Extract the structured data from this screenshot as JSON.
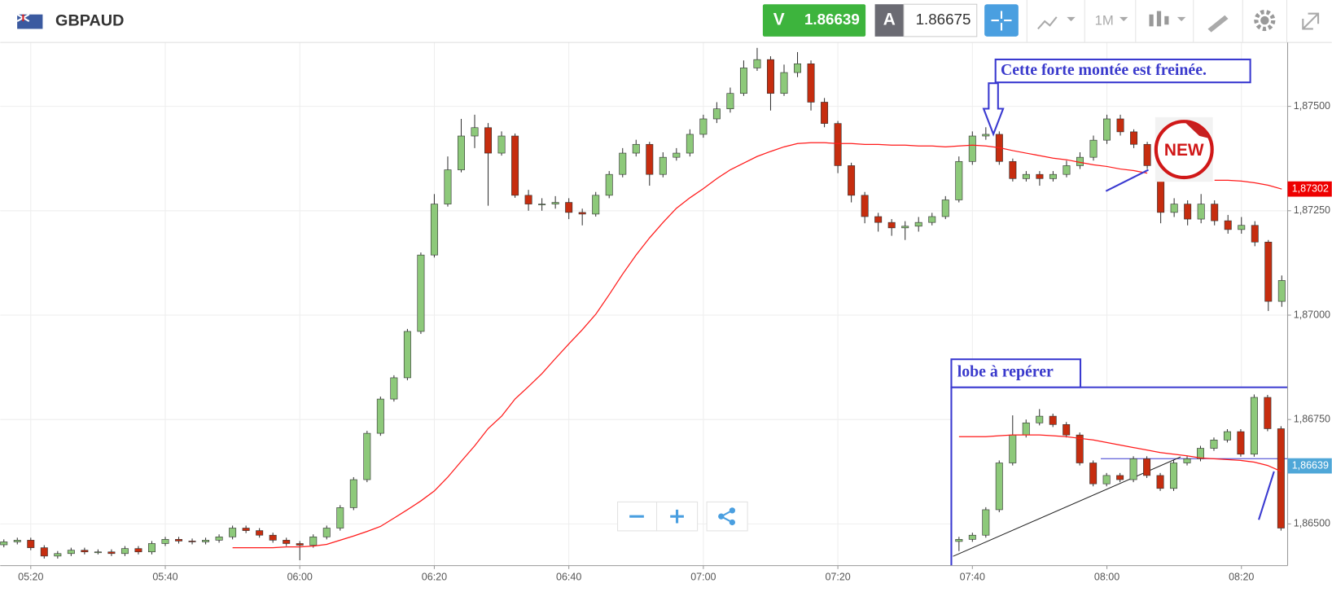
{
  "header": {
    "symbol": "GBPAUD",
    "sell_label": "V",
    "sell_price": 1.86639,
    "buy_label": "A",
    "buy_price": 1.86675,
    "timeframe": "1M"
  },
  "chart_data": [
    {
      "type": "candlestick",
      "categories": [
        null,
        null,
        "05:20",
        null,
        null,
        null,
        null,
        null,
        null,
        null,
        null,
        null,
        "05:40",
        null,
        null,
        null,
        null,
        null,
        null,
        null,
        null,
        null,
        "06:00",
        null,
        null,
        null,
        null,
        null,
        null,
        null,
        null,
        null,
        "06:20",
        null,
        null,
        null,
        null,
        null,
        null,
        null,
        null,
        null,
        "06:40",
        null,
        null,
        null,
        null,
        null,
        null,
        null,
        null,
        null,
        "07:00",
        null,
        null,
        null,
        null,
        null,
        null,
        null,
        null,
        null,
        "07:20",
        null,
        null,
        null,
        null,
        null,
        null,
        null,
        null,
        null,
        "07:40",
        null,
        null,
        null,
        null,
        null,
        null,
        null,
        null,
        null,
        "08:00",
        null,
        null,
        null,
        null,
        null,
        null,
        null,
        null,
        null,
        "08:20",
        null,
        null,
        null
      ],
      "open": [
        1.8645,
        1.86457,
        1.86461,
        1.86443,
        1.86423,
        1.86429,
        1.86437,
        1.86433,
        1.86433,
        1.86429,
        1.86441,
        1.86433,
        1.86453,
        1.86463,
        1.86459,
        1.86457,
        1.86461,
        1.86469,
        1.8649,
        1.86484,
        1.86473,
        1.86461,
        1.86453,
        1.86449,
        1.86469,
        1.8649,
        1.86539,
        1.86606,
        1.86717,
        1.86799,
        1.8685,
        1.86961,
        1.87144,
        1.87266,
        1.87348,
        1.87429,
        1.87449,
        1.87388,
        1.87429,
        1.87287,
        1.87266,
        1.87266,
        1.8727,
        1.87246,
        1.87242,
        1.87287,
        1.87337,
        1.87388,
        1.87409,
        1.87337,
        1.87378,
        1.87388,
        1.87433,
        1.8747,
        1.87494,
        1.87531,
        1.87592,
        1.87612,
        1.87531,
        1.87581,
        1.87602,
        1.8751,
        1.87459,
        1.87358,
        1.87287,
        1.87236,
        1.87222,
        1.87209,
        1.87213,
        1.87222,
        1.87236,
        1.87276,
        1.87368,
        1.87429,
        1.87433,
        1.87368,
        1.87327,
        1.87337,
        1.87327,
        1.87337,
        1.87358,
        1.87378,
        1.87419,
        1.8747,
        1.87439,
        1.87409,
        1.87358,
        1.87246,
        1.87266,
        1.8723,
        1.87266,
        1.87226,
        1.87205,
        1.87215,
        1.87175,
        1.87033
      ],
      "close": [
        1.86457,
        1.86461,
        1.86443,
        1.86423,
        1.86429,
        1.86437,
        1.86433,
        1.86433,
        1.86429,
        1.86441,
        1.86433,
        1.86453,
        1.86463,
        1.86459,
        1.86457,
        1.86461,
        1.86469,
        1.8649,
        1.86484,
        1.86473,
        1.86461,
        1.86453,
        1.86449,
        1.86469,
        1.8649,
        1.86539,
        1.86606,
        1.86717,
        1.86799,
        1.8685,
        1.86961,
        1.87144,
        1.87266,
        1.87348,
        1.87429,
        1.87449,
        1.87388,
        1.87429,
        1.87287,
        1.87266,
        1.87266,
        1.8727,
        1.87246,
        1.87242,
        1.87287,
        1.87337,
        1.87388,
        1.87409,
        1.87337,
        1.87378,
        1.87388,
        1.87433,
        1.8747,
        1.87494,
        1.87531,
        1.87592,
        1.87612,
        1.87531,
        1.87581,
        1.87602,
        1.8751,
        1.87459,
        1.87358,
        1.87287,
        1.87236,
        1.87222,
        1.87209,
        1.87213,
        1.87222,
        1.87236,
        1.87276,
        1.87368,
        1.87429,
        1.87433,
        1.87368,
        1.87327,
        1.87337,
        1.87327,
        1.87337,
        1.87358,
        1.87378,
        1.87419,
        1.8747,
        1.87439,
        1.87409,
        1.87358,
        1.87246,
        1.87266,
        1.8723,
        1.87266,
        1.87226,
        1.87205,
        1.87215,
        1.87175,
        1.87033,
        1.87083
      ],
      "high": [
        1.86463,
        1.86467,
        1.86467,
        1.86449,
        1.86435,
        1.86443,
        1.86443,
        1.86439,
        1.86439,
        1.86447,
        1.86447,
        1.86459,
        1.86469,
        1.86469,
        1.86465,
        1.86467,
        1.86475,
        1.86496,
        1.86496,
        1.8649,
        1.86479,
        1.86467,
        1.86459,
        1.86475,
        1.86496,
        1.86545,
        1.86612,
        1.86723,
        1.86805,
        1.86856,
        1.86967,
        1.8715,
        1.8729,
        1.8738,
        1.8747,
        1.8748,
        1.8746,
        1.8744,
        1.87435,
        1.873,
        1.8728,
        1.87285,
        1.8728,
        1.87255,
        1.87295,
        1.87345,
        1.874,
        1.8742,
        1.87415,
        1.8739,
        1.874,
        1.87445,
        1.8748,
        1.8751,
        1.87545,
        1.8761,
        1.8764,
        1.8762,
        1.876,
        1.8763,
        1.8761,
        1.8752,
        1.87465,
        1.87365,
        1.87295,
        1.87245,
        1.8723,
        1.87225,
        1.87235,
        1.87245,
        1.87285,
        1.8738,
        1.8744,
        1.8745,
        1.8744,
        1.87375,
        1.87345,
        1.87345,
        1.87345,
        1.8737,
        1.8739,
        1.8743,
        1.8748,
        1.8748,
        1.87445,
        1.87415,
        1.87365,
        1.8728,
        1.87275,
        1.8729,
        1.87275,
        1.8724,
        1.87235,
        1.87225,
        1.8718,
        1.87095
      ],
      "low": [
        1.86444,
        1.86451,
        1.86437,
        1.86417,
        1.86417,
        1.86423,
        1.86427,
        1.86427,
        1.86423,
        1.86423,
        1.86427,
        1.86427,
        1.86447,
        1.86453,
        1.86451,
        1.86451,
        1.86455,
        1.86463,
        1.86478,
        1.86467,
        1.86455,
        1.86447,
        1.86413,
        1.86443,
        1.86463,
        1.86484,
        1.86533,
        1.866,
        1.86711,
        1.86793,
        1.86844,
        1.86955,
        1.87138,
        1.8726,
        1.87342,
        1.874,
        1.87262,
        1.87382,
        1.87281,
        1.8725,
        1.8725,
        1.87255,
        1.8723,
        1.87215,
        1.87236,
        1.8728,
        1.8733,
        1.8738,
        1.8731,
        1.8733,
        1.8737,
        1.8738,
        1.87425,
        1.8746,
        1.87485,
        1.87525,
        1.87585,
        1.8749,
        1.87525,
        1.8757,
        1.8749,
        1.8745,
        1.8734,
        1.8727,
        1.8722,
        1.872,
        1.8719,
        1.8718,
        1.872,
        1.87215,
        1.8723,
        1.8727,
        1.8736,
        1.8742,
        1.8736,
        1.8732,
        1.8732,
        1.8731,
        1.8732,
        1.8733,
        1.8735,
        1.8737,
        1.8741,
        1.8743,
        1.874,
        1.8735,
        1.8722,
        1.87235,
        1.87215,
        1.8722,
        1.87215,
        1.87195,
        1.87195,
        1.87165,
        1.8701,
        1.8702
      ],
      "up_color": "#8dc97a",
      "down_color": "#c62d0f",
      "moving_average": {
        "color": "#ff1a1a",
        "values": [
          null,
          null,
          null,
          null,
          null,
          null,
          null,
          null,
          null,
          null,
          null,
          null,
          null,
          null,
          null,
          null,
          null,
          1.86443,
          1.86443,
          1.86443,
          1.86443,
          1.86445,
          1.86445,
          1.86447,
          1.86451,
          1.86461,
          1.86471,
          1.86482,
          1.86494,
          1.86514,
          1.86534,
          1.86555,
          1.86579,
          1.86612,
          1.8665,
          1.86687,
          1.86728,
          1.86758,
          1.86799,
          1.86829,
          1.8686,
          1.86896,
          1.86931,
          1.86965,
          1.87002,
          1.87049,
          1.87098,
          1.87144,
          1.87185,
          1.87222,
          1.87256,
          1.87281,
          1.87303,
          1.87327,
          1.87348,
          1.87364,
          1.8738,
          1.87392,
          1.87403,
          1.87411,
          1.87413,
          1.87413,
          1.87411,
          1.87411,
          1.87409,
          1.87409,
          1.87407,
          1.87407,
          1.87405,
          1.87405,
          1.87403,
          1.87405,
          1.87407,
          1.87405,
          1.87401,
          1.87394,
          1.87388,
          1.87382,
          1.87376,
          1.87372,
          1.87366,
          1.8736,
          1.87356,
          1.8735,
          1.87346,
          1.8734,
          null,
          null,
          null,
          null,
          1.87323,
          1.87323,
          1.87321,
          1.87317,
          1.87311,
          1.87302
        ]
      },
      "last_value_label": {
        "value": 1.87302,
        "label": "1,87302"
      },
      "ylim": [
        1.864,
        1.87653
      ],
      "yticks": [
        {
          "value": 1.865,
          "label": "1,86500"
        },
        {
          "value": 1.8675,
          "label": "1,86750"
        },
        {
          "value": 1.87,
          "label": "1,87000"
        },
        {
          "value": 1.8725,
          "label": "1,87250"
        },
        {
          "value": 1.875,
          "label": "1,87500"
        }
      ],
      "grid": true,
      "annotations": [
        "Cette forte montée est freinée.",
        "NEW"
      ]
    },
    {
      "type": "candlestick",
      "title": "lobe à repérer",
      "open": [
        1.86458,
        1.86463,
        1.86473,
        1.86534,
        1.86646,
        1.86713,
        1.86742,
        1.86758,
        1.86738,
        1.86713,
        1.86646,
        1.86596,
        1.86616,
        1.86606,
        1.86656,
        1.86616,
        1.86585,
        1.86646,
        1.86656,
        1.86681,
        1.86701,
        1.86721,
        1.86667,
        1.86803,
        1.86728
      ],
      "close": [
        1.86463,
        1.86473,
        1.86534,
        1.86646,
        1.86713,
        1.86742,
        1.86758,
        1.86738,
        1.86713,
        1.86646,
        1.86596,
        1.86616,
        1.86606,
        1.86656,
        1.86616,
        1.86585,
        1.86646,
        1.86656,
        1.86681,
        1.86701,
        1.86721,
        1.86667,
        1.86803,
        1.86728,
        1.8649
      ],
      "high": [
        1.86469,
        1.86479,
        1.8654,
        1.86652,
        1.8676,
        1.8675,
        1.86775,
        1.86764,
        1.86744,
        1.86719,
        1.86652,
        1.86622,
        1.86622,
        1.86662,
        1.86662,
        1.86622,
        1.86652,
        1.86662,
        1.86687,
        1.86707,
        1.86727,
        1.86727,
        1.8681,
        1.86809,
        1.86734
      ],
      "low": [
        1.86435,
        1.86457,
        1.86467,
        1.86528,
        1.8664,
        1.86707,
        1.86736,
        1.86732,
        1.86707,
        1.8664,
        1.8659,
        1.8659,
        1.866,
        1.866,
        1.8661,
        1.86579,
        1.86579,
        1.8664,
        1.8665,
        1.86675,
        1.86695,
        1.86661,
        1.86661,
        1.86722,
        1.86484
      ],
      "up_color": "#8dc97a",
      "down_color": "#c62d0f",
      "moving_average": {
        "color": "#ff1a1a",
        "values": [
          1.86709,
          1.86709,
          1.86709,
          1.86711,
          1.86713,
          1.86713,
          1.86713,
          1.86711,
          1.86709,
          1.86705,
          1.86701,
          1.86695,
          1.86689,
          1.86683,
          1.86677,
          1.86671,
          1.86667,
          1.86663,
          1.86658,
          1.86656,
          1.86654,
          1.86652,
          1.86648,
          1.8664,
          1.86626
        ]
      },
      "current_value_label": {
        "value": 1.86639,
        "label": "1,86639"
      }
    }
  ]
}
